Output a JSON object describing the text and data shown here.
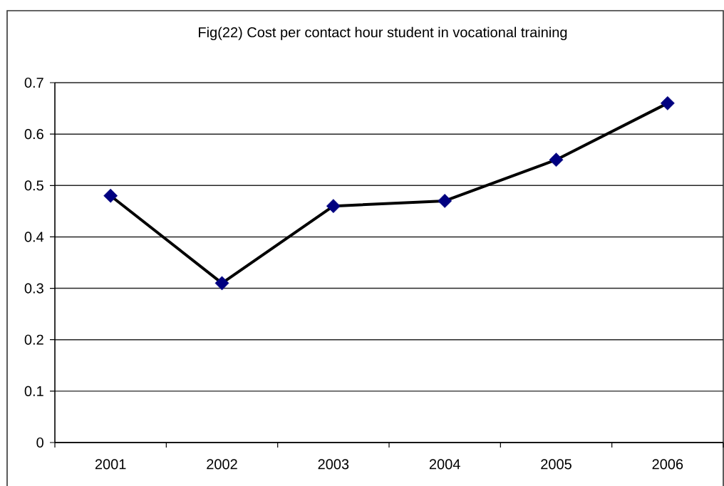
{
  "chart_data": {
    "type": "line",
    "title": "Fig(22) Cost per contact hour student in vocational training",
    "categories": [
      "2001",
      "2002",
      "2003",
      "2004",
      "2005",
      "2006"
    ],
    "series": [
      {
        "color": "#000000",
        "colors": [
          "#000080",
          "#000080",
          "#000080",
          "#000080",
          "#000080",
          "#000080"
        ],
        "values": [
          0.48,
          0.31,
          0.46,
          0.47,
          0.55,
          0.66
        ]
      }
    ],
    "ylim": [
      0,
      0.7
    ],
    "yticks": [
      0,
      0.1,
      0.2,
      0.3,
      0.4,
      0.5,
      0.6,
      0.7
    ],
    "grid": "y",
    "marker": "diamond",
    "line_style": "solid"
  }
}
